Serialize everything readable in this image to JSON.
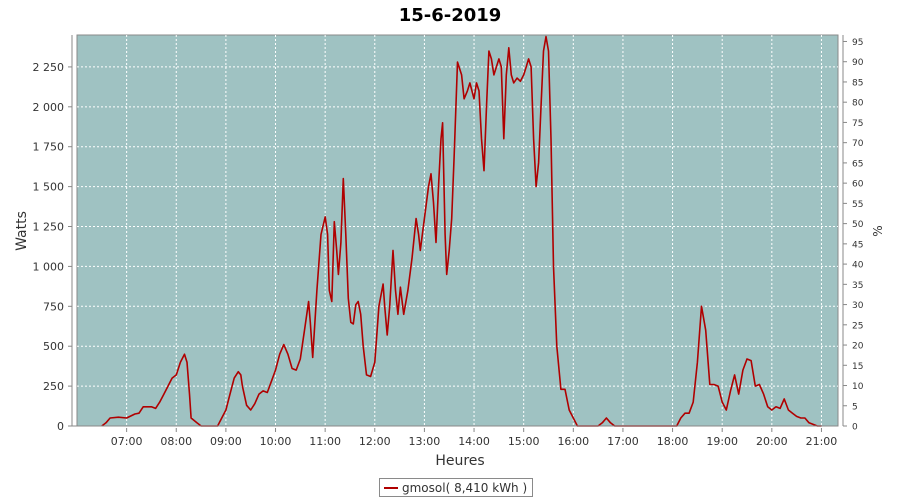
{
  "chart_data": {
    "type": "line",
    "title": "15-6-2019",
    "xlabel": "Heures",
    "ylabel": "Watts",
    "y2label": "%",
    "x_ticks": [
      "07:00",
      "08:00",
      "09:00",
      "10:00",
      "11:00",
      "12:00",
      "13:00",
      "14:00",
      "15:00",
      "16:00",
      "17:00",
      "18:00",
      "19:00",
      "20:00",
      "21:00"
    ],
    "y_ticks": [
      "0",
      "250",
      "500",
      "750",
      "1 000",
      "1 250",
      "1 500",
      "1 750",
      "2 000",
      "2 250"
    ],
    "y2_ticks": [
      "0",
      "5",
      "10",
      "15",
      "20",
      "25",
      "30",
      "35",
      "40",
      "45",
      "50",
      "55",
      "60",
      "65",
      "70",
      "75",
      "80",
      "85",
      "90",
      "95"
    ],
    "xlim": [
      "06:00",
      "21:20"
    ],
    "ylim": [
      0,
      2450
    ],
    "y2lim": [
      0,
      96.6
    ],
    "grid": true,
    "legend_position": "bottom-center",
    "colors": {
      "plot_background": "#9fc2c2",
      "series": "#b00000"
    },
    "series": [
      {
        "name": "gmosol( 8,410 kWh )",
        "points": [
          [
            "06:30",
            0
          ],
          [
            "06:35",
            20
          ],
          [
            "06:40",
            50
          ],
          [
            "06:50",
            55
          ],
          [
            "07:00",
            50
          ],
          [
            "07:10",
            75
          ],
          [
            "07:15",
            80
          ],
          [
            "07:20",
            120
          ],
          [
            "07:30",
            120
          ],
          [
            "07:35",
            110
          ],
          [
            "07:40",
            150
          ],
          [
            "07:45",
            200
          ],
          [
            "07:50",
            250
          ],
          [
            "07:55",
            300
          ],
          [
            "08:00",
            320
          ],
          [
            "08:05",
            400
          ],
          [
            "08:10",
            450
          ],
          [
            "08:13",
            400
          ],
          [
            "08:16",
            200
          ],
          [
            "08:18",
            50
          ],
          [
            "08:25",
            20
          ],
          [
            "08:30",
            0
          ],
          [
            "08:50",
            0
          ],
          [
            "09:00",
            100
          ],
          [
            "09:05",
            200
          ],
          [
            "09:10",
            300
          ],
          [
            "09:15",
            340
          ],
          [
            "09:18",
            320
          ],
          [
            "09:20",
            250
          ],
          [
            "09:25",
            130
          ],
          [
            "09:30",
            100
          ],
          [
            "09:35",
            140
          ],
          [
            "09:40",
            200
          ],
          [
            "09:45",
            220
          ],
          [
            "09:50",
            210
          ],
          [
            "09:55",
            280
          ],
          [
            "10:00",
            350
          ],
          [
            "10:05",
            450
          ],
          [
            "10:10",
            510
          ],
          [
            "10:15",
            450
          ],
          [
            "10:20",
            360
          ],
          [
            "10:25",
            350
          ],
          [
            "10:30",
            420
          ],
          [
            "10:35",
            600
          ],
          [
            "10:40",
            780
          ],
          [
            "10:42",
            650
          ],
          [
            "10:45",
            430
          ],
          [
            "10:50",
            850
          ],
          [
            "10:55",
            1200
          ],
          [
            "11:00",
            1310
          ],
          [
            "11:03",
            1200
          ],
          [
            "11:05",
            850
          ],
          [
            "11:08",
            780
          ],
          [
            "11:11",
            1280
          ],
          [
            "11:14",
            1100
          ],
          [
            "11:16",
            950
          ],
          [
            "11:19",
            1150
          ],
          [
            "11:22",
            1550
          ],
          [
            "11:25",
            1200
          ],
          [
            "11:28",
            800
          ],
          [
            "11:31",
            650
          ],
          [
            "11:34",
            640
          ],
          [
            "11:37",
            760
          ],
          [
            "11:40",
            780
          ],
          [
            "11:43",
            700
          ],
          [
            "11:46",
            500
          ],
          [
            "11:50",
            320
          ],
          [
            "11:55",
            310
          ],
          [
            "12:00",
            400
          ],
          [
            "12:05",
            750
          ],
          [
            "12:10",
            890
          ],
          [
            "12:12",
            750
          ],
          [
            "12:15",
            570
          ],
          [
            "12:18",
            750
          ],
          [
            "12:22",
            1100
          ],
          [
            "12:25",
            850
          ],
          [
            "12:28",
            700
          ],
          [
            "12:31",
            870
          ],
          [
            "12:35",
            700
          ],
          [
            "12:40",
            850
          ],
          [
            "12:45",
            1050
          ],
          [
            "12:50",
            1300
          ],
          [
            "12:53",
            1200
          ],
          [
            "12:55",
            1100
          ],
          [
            "13:00",
            1300
          ],
          [
            "13:05",
            1500
          ],
          [
            "13:08",
            1580
          ],
          [
            "13:11",
            1400
          ],
          [
            "13:14",
            1150
          ],
          [
            "13:17",
            1500
          ],
          [
            "13:20",
            1800
          ],
          [
            "13:22",
            1900
          ],
          [
            "13:25",
            1200
          ],
          [
            "13:27",
            950
          ],
          [
            "13:30",
            1100
          ],
          [
            "13:33",
            1300
          ],
          [
            "13:36",
            1700
          ],
          [
            "13:40",
            2280
          ],
          [
            "13:45",
            2200
          ],
          [
            "13:48",
            2050
          ],
          [
            "13:52",
            2100
          ],
          [
            "13:55",
            2150
          ],
          [
            "14:00",
            2050
          ],
          [
            "14:03",
            2150
          ],
          [
            "14:06",
            2100
          ],
          [
            "14:09",
            1800
          ],
          [
            "14:12",
            1600
          ],
          [
            "14:15",
            2000
          ],
          [
            "14:18",
            2350
          ],
          [
            "14:21",
            2300
          ],
          [
            "14:24",
            2200
          ],
          [
            "14:27",
            2250
          ],
          [
            "14:30",
            2300
          ],
          [
            "14:33",
            2250
          ],
          [
            "14:36",
            1800
          ],
          [
            "14:39",
            2200
          ],
          [
            "14:42",
            2370
          ],
          [
            "14:45",
            2200
          ],
          [
            "14:48",
            2150
          ],
          [
            "14:52",
            2180
          ],
          [
            "14:56",
            2160
          ],
          [
            "15:00",
            2200
          ],
          [
            "15:03",
            2250
          ],
          [
            "15:06",
            2300
          ],
          [
            "15:09",
            2250
          ],
          [
            "15:12",
            1800
          ],
          [
            "15:15",
            1500
          ],
          [
            "15:18",
            1650
          ],
          [
            "15:21",
            2000
          ],
          [
            "15:24",
            2350
          ],
          [
            "15:27",
            2440
          ],
          [
            "15:30",
            2350
          ],
          [
            "15:33",
            1800
          ],
          [
            "15:36",
            1000
          ],
          [
            "15:40",
            500
          ],
          [
            "15:45",
            230
          ],
          [
            "15:50",
            230
          ],
          [
            "15:55",
            100
          ],
          [
            "16:00",
            50
          ],
          [
            "16:05",
            0
          ],
          [
            "16:30",
            0
          ],
          [
            "16:35",
            20
          ],
          [
            "16:40",
            50
          ],
          [
            "16:45",
            20
          ],
          [
            "16:50",
            0
          ],
          [
            "18:00",
            0
          ],
          [
            "18:05",
            0
          ],
          [
            "18:10",
            50
          ],
          [
            "18:15",
            80
          ],
          [
            "18:20",
            80
          ],
          [
            "18:25",
            150
          ],
          [
            "18:30",
            400
          ],
          [
            "18:35",
            750
          ],
          [
            "18:40",
            600
          ],
          [
            "18:45",
            260
          ],
          [
            "18:50",
            260
          ],
          [
            "18:55",
            250
          ],
          [
            "19:00",
            150
          ],
          [
            "19:05",
            100
          ],
          [
            "19:10",
            220
          ],
          [
            "19:15",
            320
          ],
          [
            "19:20",
            200
          ],
          [
            "19:25",
            350
          ],
          [
            "19:30",
            420
          ],
          [
            "19:35",
            410
          ],
          [
            "19:40",
            250
          ],
          [
            "19:45",
            260
          ],
          [
            "19:50",
            200
          ],
          [
            "19:55",
            120
          ],
          [
            "20:00",
            100
          ],
          [
            "20:05",
            120
          ],
          [
            "20:10",
            110
          ],
          [
            "20:15",
            170
          ],
          [
            "20:20",
            100
          ],
          [
            "20:25",
            80
          ],
          [
            "20:30",
            60
          ],
          [
            "20:35",
            50
          ],
          [
            "20:40",
            50
          ],
          [
            "20:45",
            20
          ],
          [
            "20:50",
            10
          ],
          [
            "20:55",
            0
          ],
          [
            "21:00",
            0
          ]
        ]
      }
    ]
  }
}
